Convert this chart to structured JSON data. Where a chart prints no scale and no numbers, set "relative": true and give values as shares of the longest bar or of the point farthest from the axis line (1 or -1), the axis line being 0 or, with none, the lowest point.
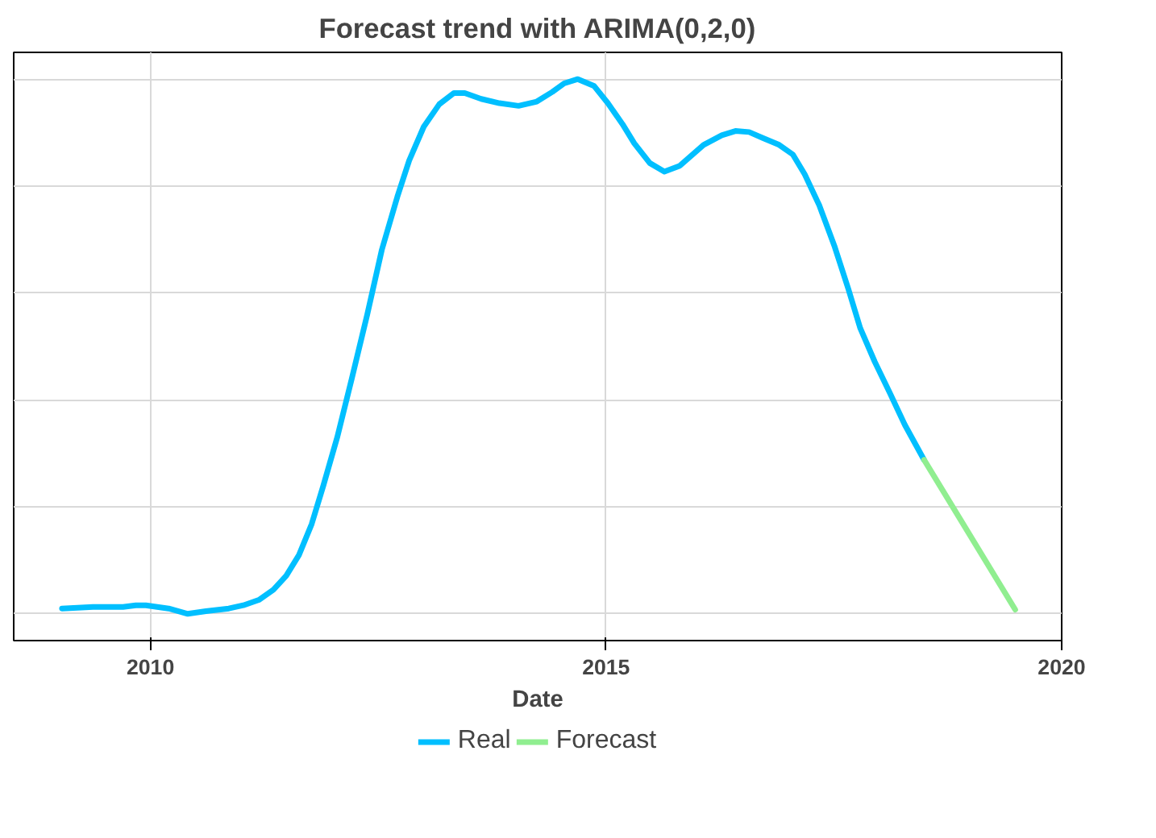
{
  "chart_data": {
    "type": "line",
    "title": "Forecast trend with ARIMA(0,2,0)",
    "xlabel": "Date",
    "relative": true,
    "xlim": [
      2008.5,
      2020.0
    ],
    "xticks": [
      2010,
      2015,
      2020
    ],
    "grid": true,
    "legend": "bottom",
    "line_style": "solid",
    "series": [
      {
        "name": "Real",
        "color": "#00bfff",
        "x": [
          2009.03,
          2009.37,
          2009.7,
          2009.84,
          2009.95,
          2010.2,
          2010.41,
          2010.61,
          2010.86,
          2011.02,
          2011.19,
          2011.35,
          2011.49,
          2011.63,
          2011.77,
          2011.9,
          2012.05,
          2012.21,
          2012.38,
          2012.54,
          2012.71,
          2012.84,
          2013.0,
          2013.17,
          2013.33,
          2013.45,
          2013.63,
          2013.83,
          2014.04,
          2014.24,
          2014.41,
          2014.54,
          2014.69,
          2014.87,
          2015.02,
          2015.18,
          2015.31,
          2015.48,
          2015.64,
          2015.81,
          2016.07,
          2016.27,
          2016.42,
          2016.57,
          2016.72,
          2016.9,
          2017.05,
          2017.18,
          2017.34,
          2017.51,
          2017.66,
          2017.79,
          2017.95,
          2018.12,
          2018.28,
          2018.49
        ],
        "values": [
          0.01,
          0.013,
          0.013,
          0.016,
          0.016,
          0.01,
          0.0,
          0.005,
          0.01,
          0.016,
          0.026,
          0.045,
          0.071,
          0.11,
          0.168,
          0.241,
          0.33,
          0.44,
          0.56,
          0.681,
          0.78,
          0.848,
          0.911,
          0.953,
          0.974,
          0.974,
          0.963,
          0.955,
          0.95,
          0.958,
          0.976,
          0.992,
          1.0,
          0.987,
          0.955,
          0.916,
          0.88,
          0.843,
          0.827,
          0.838,
          0.877,
          0.895,
          0.903,
          0.901,
          0.89,
          0.877,
          0.859,
          0.822,
          0.764,
          0.686,
          0.607,
          0.534,
          0.471,
          0.411,
          0.353,
          0.288
        ]
      },
      {
        "name": "Forecast",
        "color": "#90ee90",
        "x": [
          2018.49,
          2019.49
        ],
        "values": [
          0.288,
          0.008
        ]
      }
    ]
  }
}
